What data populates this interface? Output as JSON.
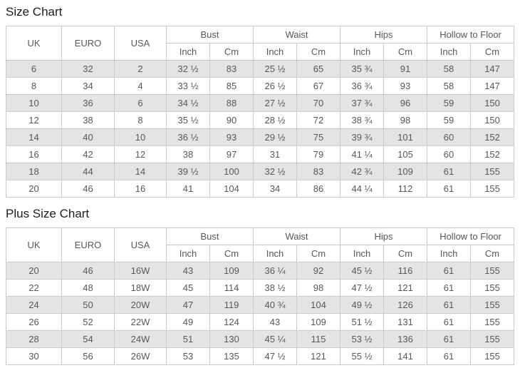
{
  "colors": {
    "stripe_row": "#e4e4e4",
    "border": "#cbcbcb",
    "cell_text": "#58585a",
    "title_text": "#1c1c1c",
    "background": "#ffffff"
  },
  "chart_data": [
    {
      "type": "table",
      "title": "Size Chart",
      "rowspan_headers": [
        "UK",
        "EURO",
        "USA"
      ],
      "group_headers": [
        "Bust",
        "Waist",
        "Hips",
        "Hollow to Floor"
      ],
      "sub_headers": [
        "Inch",
        "Cm",
        "Inch",
        "Cm",
        "Inch",
        "Cm",
        "Inch",
        "Cm"
      ],
      "rows": [
        [
          "6",
          "32",
          "2",
          "32 ½",
          "83",
          "25 ½",
          "65",
          "35 ¾",
          "91",
          "58",
          "147"
        ],
        [
          "8",
          "34",
          "4",
          "33 ½",
          "85",
          "26 ½",
          "67",
          "36 ¾",
          "93",
          "58",
          "147"
        ],
        [
          "10",
          "36",
          "6",
          "34 ½",
          "88",
          "27 ½",
          "70",
          "37 ¾",
          "96",
          "59",
          "150"
        ],
        [
          "12",
          "38",
          "8",
          "35 ½",
          "90",
          "28 ½",
          "72",
          "38 ¾",
          "98",
          "59",
          "150"
        ],
        [
          "14",
          "40",
          "10",
          "36 ½",
          "93",
          "29 ½",
          "75",
          "39 ¾",
          "101",
          "60",
          "152"
        ],
        [
          "16",
          "42",
          "12",
          "38",
          "97",
          "31",
          "79",
          "41 ¼",
          "105",
          "60",
          "152"
        ],
        [
          "18",
          "44",
          "14",
          "39 ½",
          "100",
          "32 ½",
          "83",
          "42 ¾",
          "109",
          "61",
          "155"
        ],
        [
          "20",
          "46",
          "16",
          "41",
          "104",
          "34",
          "86",
          "44 ¼",
          "112",
          "61",
          "155"
        ]
      ]
    },
    {
      "type": "table",
      "title": "Plus Size Chart",
      "rowspan_headers": [
        "UK",
        "EURO",
        "USA"
      ],
      "group_headers": [
        "Bust",
        "Waist",
        "Hips",
        "Hollow to Floor"
      ],
      "sub_headers": [
        "Inch",
        "Cm",
        "Inch",
        "Cm",
        "Inch",
        "Cm",
        "Inch",
        "Cm"
      ],
      "rows": [
        [
          "20",
          "46",
          "16W",
          "43",
          "109",
          "36 ¼",
          "92",
          "45 ½",
          "116",
          "61",
          "155"
        ],
        [
          "22",
          "48",
          "18W",
          "45",
          "114",
          "38 ½",
          "98",
          "47 ½",
          "121",
          "61",
          "155"
        ],
        [
          "24",
          "50",
          "20W",
          "47",
          "119",
          "40 ¾",
          "104",
          "49 ½",
          "126",
          "61",
          "155"
        ],
        [
          "26",
          "52",
          "22W",
          "49",
          "124",
          "43",
          "109",
          "51 ½",
          "131",
          "61",
          "155"
        ],
        [
          "28",
          "54",
          "24W",
          "51",
          "130",
          "45 ¼",
          "115",
          "53 ½",
          "136",
          "61",
          "155"
        ],
        [
          "30",
          "56",
          "26W",
          "53",
          "135",
          "47 ½",
          "121",
          "55 ½",
          "141",
          "61",
          "155"
        ]
      ]
    }
  ]
}
